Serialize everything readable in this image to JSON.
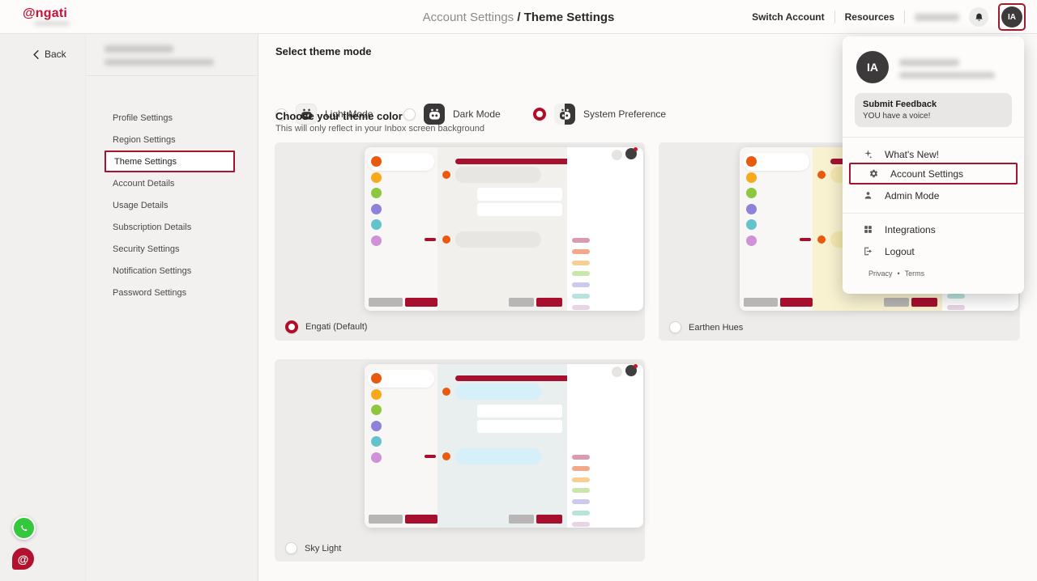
{
  "header": {
    "logo_text": "@ngati",
    "breadcrumb": {
      "section": "Account Settings",
      "separator": " / ",
      "current": "Theme Settings"
    },
    "switch_account_label": "Switch Account",
    "resources_label": "Resources",
    "avatar_initials": "IA"
  },
  "navigation": {
    "back_label": "Back"
  },
  "sidebar": {
    "items": [
      {
        "label": "Profile Settings",
        "active": false
      },
      {
        "label": "Region Settings",
        "active": false
      },
      {
        "label": "Theme Settings",
        "active": true
      },
      {
        "label": "Account Details",
        "active": false
      },
      {
        "label": "Usage Details",
        "active": false
      },
      {
        "label": "Subscription Details",
        "active": false
      },
      {
        "label": "Security Settings",
        "active": false
      },
      {
        "label": "Notification Settings",
        "active": false
      },
      {
        "label": "Password Settings",
        "active": false
      }
    ]
  },
  "theme_mode": {
    "title": "Select theme mode",
    "options": [
      {
        "label": "Light Mode",
        "icon": "light-mode-bot-icon",
        "selected": false
      },
      {
        "label": "Dark Mode",
        "icon": "dark-mode-bot-icon",
        "selected": false
      },
      {
        "label": "System Preference",
        "icon": "system-preference-bot-icon",
        "selected": true
      }
    ]
  },
  "theme_color": {
    "title": "Choose your theme color",
    "subtitle": "This will only reflect in your Inbox screen background",
    "cards": [
      {
        "label": "Engati (Default)",
        "selected": true,
        "chat_bg": "#f1f0ed",
        "bubble_bg": "#e7e6e3"
      },
      {
        "label": "Earthen Hues",
        "selected": false,
        "chat_bg": "#f8f2d1",
        "bubble_bg": "#f4e7ac"
      },
      {
        "label": "Sky Light",
        "selected": false,
        "chat_bg": "#e8efee",
        "bubble_bg": "#d6f0fa"
      }
    ]
  },
  "account_menu": {
    "avatar_initials": "IA",
    "feedback": {
      "title": "Submit Feedback",
      "subtitle": "YOU have a voice!"
    },
    "items": [
      {
        "label": "What's New!",
        "icon": "sparkle-icon",
        "highlight": false,
        "group": 1
      },
      {
        "label": "Account Settings",
        "icon": "gear-icon",
        "highlight": true,
        "group": 1
      },
      {
        "label": "Admin Mode",
        "icon": "person-icon",
        "highlight": false,
        "group": 1
      },
      {
        "label": "Integrations",
        "icon": "grid-icon",
        "highlight": false,
        "group": 2
      },
      {
        "label": "Logout",
        "icon": "logout-icon",
        "highlight": false,
        "group": 2
      }
    ],
    "footer_links": [
      "Privacy",
      "Terms"
    ]
  },
  "mockup_palette": {
    "avatar_colors": [
      "#ea5a0d",
      "#f8a81b",
      "#8ec63f",
      "#8d82da",
      "#62c3cb",
      "#cf92d9"
    ],
    "pill_colors": [
      "#d99cae",
      "#f2a88b",
      "#f7cf92",
      "#c9e6ad",
      "#cdc9ee",
      "#b6e3da",
      "#e9d3e6"
    ],
    "header_bar_color": "#a41230",
    "button_gray": "#b8b6b4",
    "button_red": "#a60f2d",
    "status_dark_circle": "#413e3f",
    "status_light_circle": "#e6e4e2",
    "notification_dot": "#cc1122"
  },
  "colors": {
    "brand_red": "#a51330"
  }
}
